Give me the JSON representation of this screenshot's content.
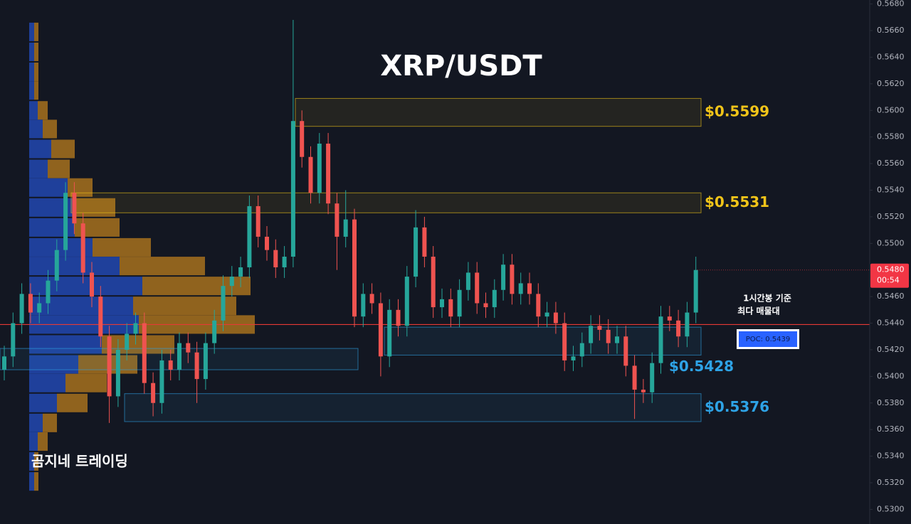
{
  "chart_data": {
    "type": "candlestick",
    "title": "XRP/USDT",
    "watermark": "곰지네 트레이딩",
    "annotation": [
      "1시간봉 기준",
      "최다 매물대"
    ],
    "up_color": "#26a69a",
    "down_color": "#ef5350",
    "ylim": [
      0.5289,
      0.5683
    ],
    "yticks": [
      {
        "value": 0.568,
        "label": "0.5680"
      },
      {
        "value": 0.566,
        "label": "0.5660"
      },
      {
        "value": 0.564,
        "label": "0.5640"
      },
      {
        "value": 0.562,
        "label": "0.5620"
      },
      {
        "value": 0.56,
        "label": "0.5600"
      },
      {
        "value": 0.558,
        "label": "0.5580"
      },
      {
        "value": 0.556,
        "label": "0.5560"
      },
      {
        "value": 0.554,
        "label": "0.5540"
      },
      {
        "value": 0.552,
        "label": "0.5520"
      },
      {
        "value": 0.55,
        "label": "0.5500"
      },
      {
        "value": 0.548,
        "label": "0.5480"
      },
      {
        "value": 0.546,
        "label": "0.5460"
      },
      {
        "value": 0.544,
        "label": "0.5440"
      },
      {
        "value": 0.542,
        "label": "0.5420"
      },
      {
        "value": 0.54,
        "label": "0.5400"
      },
      {
        "value": 0.538,
        "label": "0.5380"
      },
      {
        "value": 0.536,
        "label": "0.5360"
      },
      {
        "value": 0.534,
        "label": "0.5340"
      },
      {
        "value": 0.532,
        "label": "0.5320"
      },
      {
        "value": 0.53,
        "label": "0.5300"
      }
    ],
    "open": [
      0.5405,
      0.5415,
      0.544,
      0.5462,
      0.5448,
      0.5455,
      0.5472,
      0.5495,
      0.5538,
      0.5515,
      0.5478,
      0.546,
      0.543,
      0.5385,
      0.542,
      0.5432,
      0.544,
      0.5395,
      0.538,
      0.5412,
      0.5405,
      0.5425,
      0.5418,
      0.5398,
      0.5425,
      0.5442,
      0.5468,
      0.5475,
      0.5482,
      0.5528,
      0.5505,
      0.5495,
      0.5482,
      0.549,
      0.5592,
      0.5565,
      0.5538,
      0.5575,
      0.553,
      0.5505,
      0.5518,
      0.5445,
      0.5462,
      0.5455,
      0.5415,
      0.545,
      0.5438,
      0.5475,
      0.5512,
      0.549,
      0.5452,
      0.5458,
      0.5445,
      0.5465,
      0.5478,
      0.5455,
      0.5452,
      0.5465,
      0.5484,
      0.5462,
      0.547,
      0.5462,
      0.5445,
      0.5448,
      0.544,
      0.5412,
      0.5415,
      0.5425,
      0.5438,
      0.5435,
      0.5425,
      0.543,
      0.5408,
      0.539,
      0.5388,
      0.541,
      0.5445,
      0.5442,
      0.543,
      0.5448
    ],
    "high": [
      0.5423,
      0.5448,
      0.547,
      0.547,
      0.5463,
      0.548,
      0.5503,
      0.5546,
      0.5546,
      0.5523,
      0.5486,
      0.5468,
      0.5438,
      0.5428,
      0.544,
      0.5448,
      0.5448,
      0.5403,
      0.542,
      0.542,
      0.5433,
      0.5433,
      0.5426,
      0.5433,
      0.545,
      0.5476,
      0.5483,
      0.549,
      0.5536,
      0.5536,
      0.5513,
      0.5503,
      0.5498,
      0.5668,
      0.56,
      0.5573,
      0.5583,
      0.5583,
      0.5538,
      0.554,
      0.5526,
      0.547,
      0.547,
      0.5463,
      0.5458,
      0.5458,
      0.5483,
      0.5525,
      0.552,
      0.5498,
      0.5466,
      0.5466,
      0.5473,
      0.5486,
      0.5486,
      0.5463,
      0.5473,
      0.5492,
      0.5492,
      0.5478,
      0.5478,
      0.547,
      0.5456,
      0.5456,
      0.5448,
      0.5423,
      0.5433,
      0.5446,
      0.5446,
      0.5443,
      0.5438,
      0.5438,
      0.5416,
      0.5398,
      0.5418,
      0.5453,
      0.5453,
      0.545,
      0.5456,
      0.549
    ],
    "low": [
      0.5397,
      0.5407,
      0.5432,
      0.544,
      0.544,
      0.5447,
      0.5464,
      0.5487,
      0.5507,
      0.547,
      0.5452,
      0.5422,
      0.5365,
      0.5377,
      0.5412,
      0.5424,
      0.5387,
      0.537,
      0.5372,
      0.5397,
      0.5397,
      0.541,
      0.538,
      0.539,
      0.5417,
      0.5434,
      0.546,
      0.5467,
      0.5474,
      0.5497,
      0.5487,
      0.5474,
      0.5474,
      0.5482,
      0.5557,
      0.553,
      0.553,
      0.5522,
      0.548,
      0.5497,
      0.5437,
      0.5437,
      0.5447,
      0.54,
      0.5407,
      0.543,
      0.543,
      0.5467,
      0.5482,
      0.5444,
      0.5444,
      0.5437,
      0.5437,
      0.5457,
      0.5447,
      0.5444,
      0.5444,
      0.5457,
      0.5454,
      0.5454,
      0.5454,
      0.5437,
      0.5437,
      0.5432,
      0.5404,
      0.5404,
      0.5407,
      0.5417,
      0.5427,
      0.5417,
      0.5417,
      0.54,
      0.5368,
      0.538,
      0.538,
      0.5402,
      0.5434,
      0.5422,
      0.5422,
      0.544
    ],
    "close": [
      0.5415,
      0.544,
      0.5462,
      0.5448,
      0.5455,
      0.5472,
      0.5495,
      0.5538,
      0.5515,
      0.5478,
      0.546,
      0.543,
      0.5385,
      0.542,
      0.5432,
      0.544,
      0.5395,
      0.538,
      0.5412,
      0.5405,
      0.5425,
      0.5418,
      0.5398,
      0.5425,
      0.5442,
      0.5468,
      0.5475,
      0.5482,
      0.5528,
      0.5505,
      0.5495,
      0.5482,
      0.549,
      0.5592,
      0.5565,
      0.5538,
      0.5575,
      0.553,
      0.5505,
      0.5518,
      0.5445,
      0.5462,
      0.5455,
      0.5415,
      0.545,
      0.5438,
      0.5475,
      0.5512,
      0.549,
      0.5452,
      0.5458,
      0.5445,
      0.5465,
      0.5478,
      0.5455,
      0.5452,
      0.5465,
      0.5484,
      0.5462,
      0.547,
      0.5462,
      0.5445,
      0.5448,
      0.544,
      0.5412,
      0.5415,
      0.5425,
      0.5438,
      0.5435,
      0.5425,
      0.543,
      0.5408,
      0.539,
      0.5388,
      0.541,
      0.5445,
      0.5442,
      0.543,
      0.5448,
      0.548
    ],
    "volume_profile": {
      "prices": [
        0.5659,
        0.5644,
        0.5629,
        0.5615,
        0.56,
        0.5586,
        0.5571,
        0.5556,
        0.5542,
        0.5527,
        0.5512,
        0.5497,
        0.5483,
        0.5468,
        0.5453,
        0.5439,
        0.5424,
        0.5409,
        0.5395,
        0.538,
        0.5365,
        0.5351,
        0.5336,
        0.5321
      ],
      "buy": [
        7,
        7,
        7,
        7,
        12,
        19,
        31,
        26,
        54,
        64,
        64,
        89,
        127,
        159,
        146,
        154,
        102,
        69,
        51,
        39,
        19,
        12,
        7,
        7
      ],
      "sell": [
        6,
        6,
        6,
        6,
        14,
        20,
        33,
        31,
        35,
        57,
        63,
        82,
        120,
        152,
        145,
        163,
        102,
        83,
        58,
        43,
        20,
        14,
        6,
        6
      ],
      "buy_color": "#2962ff",
      "sell_color": "#f7a21b"
    },
    "zones": [
      {
        "label": "$0.5599",
        "low": 0.5588,
        "high": 0.5609,
        "color": "#f0c419"
      },
      {
        "label": "$0.5531",
        "low": 0.5523,
        "high": 0.5538,
        "color": "#f0c419"
      },
      {
        "label": "$0.5428",
        "low": 0.5416,
        "high": 0.5437,
        "color": "#2ea3e6"
      },
      {
        "label": "$0.5376",
        "low": 0.5366,
        "high": 0.5387,
        "color": "#2ea3e6"
      },
      {
        "low": 0.5405,
        "high": 0.5421,
        "color": "#2ea3e6"
      }
    ],
    "poc": {
      "value": 0.5439,
      "label": "POC: 0.5439",
      "color": "#e53935"
    },
    "last_price": {
      "value": 0.548,
      "label": "0.5480",
      "countdown": "00:54",
      "color": "#f23645"
    }
  }
}
